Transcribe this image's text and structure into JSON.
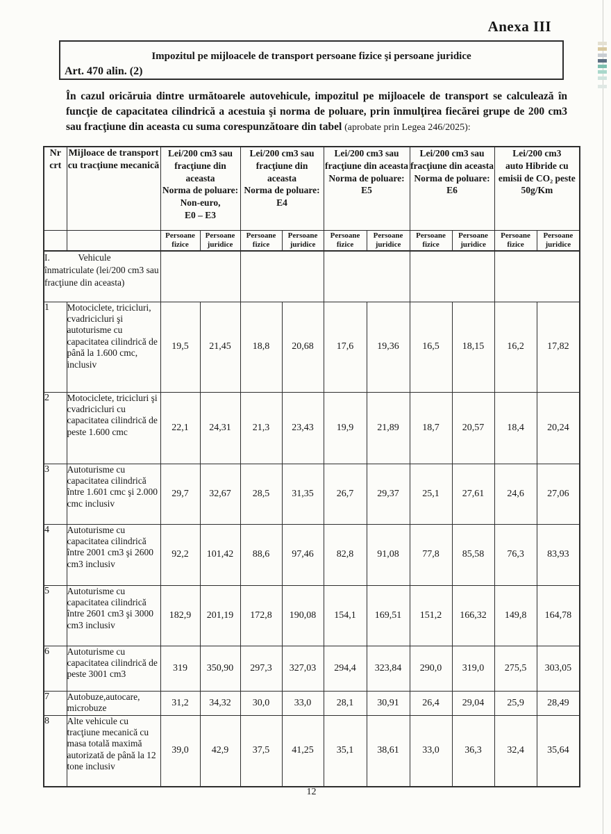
{
  "page": {
    "annex_label": "Anexa III",
    "page_number": "12"
  },
  "title_box": {
    "title": "Impozitul pe mijloacele de transport persoane fizice şi persoane juridice",
    "article": "Art. 470 alin. (2)"
  },
  "intro": {
    "main": "În cazul oricăruia dintre următoarele autovehicule, impozitul pe mijloacele de transport se calculează în funcţie de capacitatea cilindrică a acestuia şi norma de poluare, prin înmulţirea fiecărei grupe de 200 cm3 sau fracţiune din aceasta cu suma corespunzătoare din tabel ",
    "note": "(aprobate prin Legea 246/2025):"
  },
  "table": {
    "col_nr_header": "Nr\ncrt",
    "col_vehicle_header": "Mijloace de transport cu tracţiune mecanică",
    "subheader_fizice": "Persoane fizice",
    "subheader_juridice": "Persoane juridice",
    "groups": [
      {
        "title": "Lei/200 cm3 sau fracţiune din aceasta\nNorma de poluare: Non-euro,\nE0 – E3"
      },
      {
        "title": "Lei/200 cm3 sau fracţiune din aceasta\nNorma de poluare: E4"
      },
      {
        "title": "Lei/200 cm3 sau fracţiune din aceasta\nNorma de poluare: E5"
      },
      {
        "title": "Lei/200 cm3 sau fracţiune din aceasta\nNorma de poluare: E6"
      },
      {
        "title": "Lei/200 cm3\nauto Hibride cu emisii de CO₂ peste 50g/Km"
      }
    ],
    "section_row": {
      "label": "I.            Vehicule înmatriculate (lei/200 cm3 sau fracţiune din aceasta)"
    },
    "rows": [
      {
        "nr": "1",
        "label": "Motociclete, tricicluri, cvadricicluri şi autoturisme cu capacitatea cilindrică de până la 1.600 cmc, inclusiv",
        "values": [
          "19,5",
          "21,45",
          "18,8",
          "20,68",
          "17,6",
          "19,36",
          "16,5",
          "18,15",
          "16,2",
          "17,82"
        ]
      },
      {
        "nr": "2",
        "label": "Motociclete, tricicluri şi cvadricicluri cu capacitatea cilindrică de peste 1.600 cmc",
        "values": [
          "22,1",
          "24,31",
          "21,3",
          "23,43",
          "19,9",
          "21,89",
          "18,7",
          "20,57",
          "18,4",
          "20,24"
        ]
      },
      {
        "nr": "3",
        "label": "Autoturisme cu capacitatea cilindrică între 1.601 cmc şi 2.000 cmc inclusiv",
        "values": [
          "29,7",
          "32,67",
          "28,5",
          "31,35",
          "26,7",
          "29,37",
          "25,1",
          "27,61",
          "24,6",
          "27,06"
        ]
      },
      {
        "nr": "4",
        "label": "Autoturisme cu capacitatea cilindrică între 2001 cm3 şi 2600 cm3 inclusiv",
        "values": [
          "92,2",
          "101,42",
          "88,6",
          "97,46",
          "82,8",
          "91,08",
          "77,8",
          "85,58",
          "76,3",
          "83,93"
        ]
      },
      {
        "nr": "5",
        "label": "Autoturisme cu capacitatea cilindrică între 2601 cm3 şi 3000 cm3 inclusiv",
        "values": [
          "182,9",
          "201,19",
          "172,8",
          "190,08",
          "154,1",
          "169,51",
          "151,2",
          "166,32",
          "149,8",
          "164,78"
        ]
      },
      {
        "nr": "6",
        "label": "Autoturisme cu capacitatea cilindrică de peste 3001 cm3",
        "values": [
          "319",
          "350,90",
          "297,3",
          "327,03",
          "294,4",
          "323,84",
          "290,0",
          "319,0",
          "275,5",
          "303,05"
        ]
      },
      {
        "nr": "7",
        "label": "Autobuze,autocare, microbuze",
        "values": [
          "31,2",
          "34,32",
          "30,0",
          "33,0",
          "28,1",
          "30,91",
          "26,4",
          "29,04",
          "25,9",
          "28,49"
        ]
      },
      {
        "nr": "8",
        "label": "Alte vehicule cu tracţiune mecanică cu masa totală maximă autorizată de până la 12 tone inclusiv",
        "values": [
          "39,0",
          "42,9",
          "37,5",
          "41,25",
          "35,1",
          "38,61",
          "33,0",
          "36,3",
          "32,4",
          "35,64"
        ]
      }
    ]
  }
}
